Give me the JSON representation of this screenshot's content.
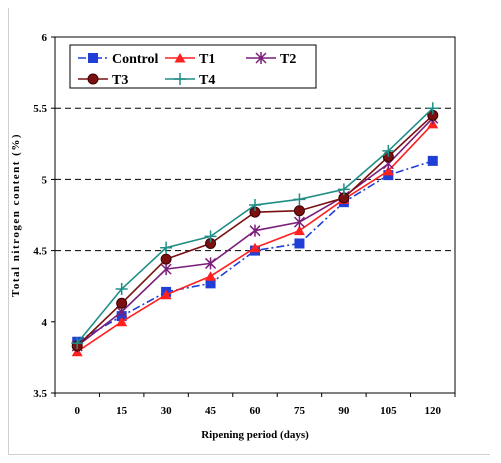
{
  "chart_data": {
    "type": "line",
    "xlabel": "Ripening period (days)",
    "ylabel": "Total nitrogen content (%)",
    "x": [
      0,
      15,
      30,
      45,
      60,
      75,
      90,
      105,
      120
    ],
    "ylim": [
      3.5,
      6
    ],
    "yticks": [
      "3.5",
      "4",
      "4.5",
      "5",
      "5.5",
      "6"
    ],
    "grid": "horizontal dashed at 4.5, 5, 5.5",
    "legend_position": "top-left, inside plot",
    "series": [
      {
        "name": "Control",
        "color": "#1f3fd6",
        "marker": "square",
        "dash": "dashdot",
        "values": [
          3.86,
          4.04,
          4.21,
          4.27,
          4.5,
          4.55,
          4.84,
          5.03,
          5.13
        ]
      },
      {
        "name": "T1",
        "color": "#ff2020",
        "marker": "triangle",
        "dash": "solid",
        "values": [
          3.79,
          4.0,
          4.19,
          4.32,
          4.52,
          4.64,
          4.86,
          5.06,
          5.39
        ]
      },
      {
        "name": "T2",
        "color": "#7a1f7a",
        "marker": "asterisk",
        "dash": "solid",
        "values": [
          3.83,
          4.07,
          4.37,
          4.41,
          4.64,
          4.7,
          4.88,
          5.11,
          5.43
        ]
      },
      {
        "name": "T3",
        "color": "#7a1010",
        "marker": "circle",
        "dash": "solid",
        "values": [
          3.83,
          4.13,
          4.44,
          4.55,
          4.77,
          4.78,
          4.87,
          5.16,
          5.45
        ]
      },
      {
        "name": "T4",
        "color": "#1f8f86",
        "marker": "plus",
        "dash": "solid",
        "values": [
          3.85,
          4.23,
          4.52,
          4.6,
          4.82,
          4.86,
          4.93,
          5.2,
          5.5
        ]
      }
    ]
  }
}
